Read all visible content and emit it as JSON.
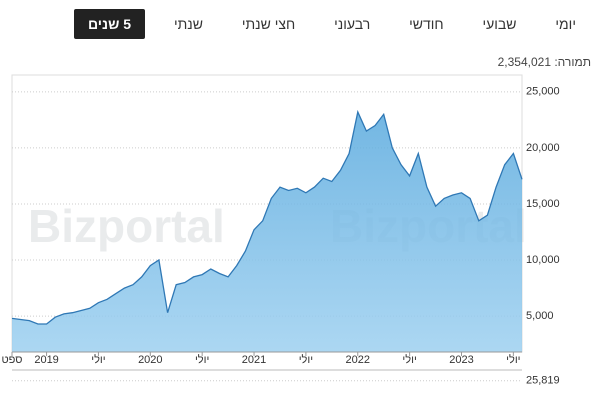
{
  "tabs": [
    "יומי",
    "שבועי",
    "חודשי",
    "רבעוני",
    "חצי שנתי",
    "שנתי",
    "5 שנים"
  ],
  "active_tab": 6,
  "return_label": "תמורה:",
  "return_value": "2,354,021",
  "watermark": "Bizportal",
  "chart_data": {
    "type": "area",
    "x": [
      "2018-09",
      "2018-10",
      "2018-11",
      "2018-12",
      "2019-01",
      "2019-02",
      "2019-03",
      "2019-04",
      "2019-05",
      "2019-06",
      "2019-07",
      "2019-08",
      "2019-09",
      "2019-10",
      "2019-11",
      "2019-12",
      "2020-01",
      "2020-02",
      "2020-03",
      "2020-04",
      "2020-05",
      "2020-06",
      "2020-07",
      "2020-08",
      "2020-09",
      "2020-10",
      "2020-11",
      "2020-12",
      "2021-01",
      "2021-02",
      "2021-03",
      "2021-04",
      "2021-05",
      "2021-06",
      "2021-07",
      "2021-08",
      "2021-09",
      "2021-10",
      "2021-11",
      "2021-12",
      "2022-01",
      "2022-02",
      "2022-03",
      "2022-04",
      "2022-05",
      "2022-06",
      "2022-07",
      "2022-08",
      "2022-09",
      "2022-10",
      "2022-11",
      "2022-12",
      "2023-01",
      "2023-02",
      "2023-03",
      "2023-04",
      "2023-05",
      "2023-06",
      "2023-07",
      "2023-08"
    ],
    "series": [
      {
        "color": "#2f78b5",
        "fill": "#8cc6ec",
        "values": [
          4800,
          4700,
          4600,
          4300,
          4300,
          4900,
          5200,
          5300,
          5500,
          5700,
          6200,
          6500,
          7000,
          7500,
          7800,
          8500,
          9500,
          10000,
          5300,
          7800,
          8000,
          8500,
          8700,
          9200,
          8800,
          8500,
          9500,
          10800,
          12700,
          13500,
          15500,
          16500,
          16200,
          16400,
          16000,
          16500,
          17300,
          17000,
          18000,
          19500,
          23200,
          21500,
          22000,
          23000,
          20000,
          18500,
          17500,
          19500,
          16500,
          14800,
          15500,
          15800,
          16000,
          15500,
          13500,
          14000,
          16500,
          18500,
          19500,
          17200
        ]
      }
    ],
    "xticks": [
      {
        "value": "2018-09",
        "label": "ספט"
      },
      {
        "value": "2019-01",
        "label": "2019"
      },
      {
        "value": "2019-07",
        "label": "יולי"
      },
      {
        "value": "2020-01",
        "label": "2020"
      },
      {
        "value": "2020-07",
        "label": "יולי"
      },
      {
        "value": "2021-01",
        "label": "2021"
      },
      {
        "value": "2021-07",
        "label": "יולי"
      },
      {
        "value": "2022-01",
        "label": "2022"
      },
      {
        "value": "2022-07",
        "label": "יולי"
      },
      {
        "value": "2023-01",
        "label": "2023"
      },
      {
        "value": "2023-07",
        "label": "יולי"
      }
    ],
    "ylim": [
      1800,
      26500
    ],
    "yticks": [
      {
        "value": 5000,
        "label": "5,000"
      },
      {
        "value": 10000,
        "label": "10,000"
      },
      {
        "value": 15000,
        "label": "15,000"
      },
      {
        "value": 20000,
        "label": "20,000"
      },
      {
        "value": 25000,
        "label": "25,000"
      }
    ],
    "grid": true,
    "volume": {
      "ylim": [
        0,
        36000
      ],
      "yticks": [
        {
          "value": 25819,
          "label": "25,819"
        }
      ]
    }
  }
}
